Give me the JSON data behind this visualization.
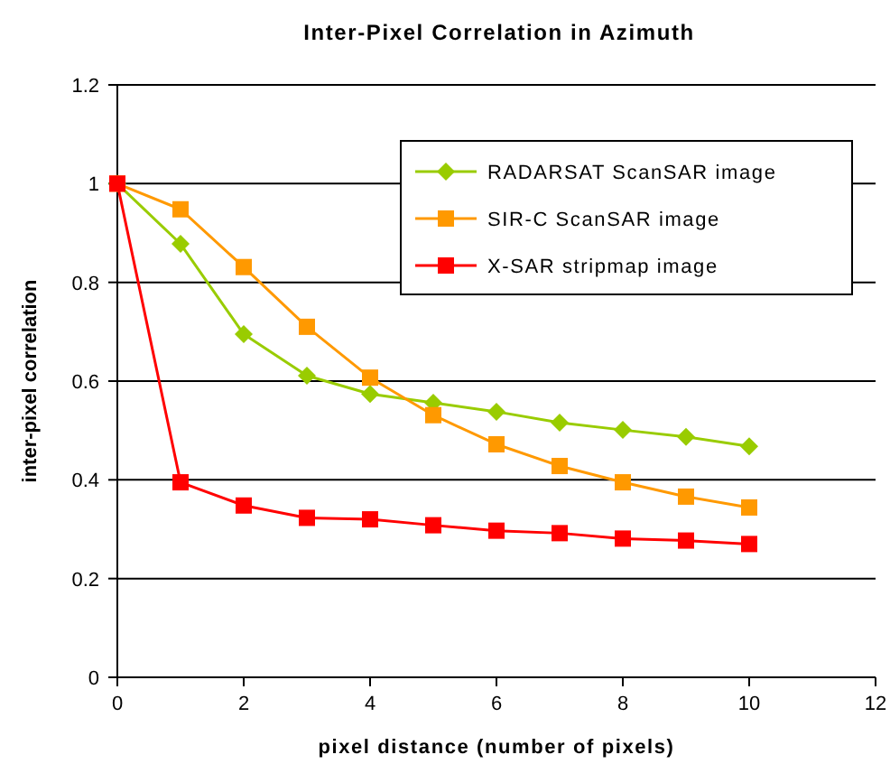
{
  "chart_data": {
    "type": "line",
    "title": "Inter-Pixel Correlation in Azimuth",
    "xlabel": "pixel distance (number of pixels)",
    "ylabel": "inter-pixel correlation",
    "x": [
      0,
      1,
      2,
      3,
      4,
      5,
      6,
      7,
      8,
      9,
      10
    ],
    "series": [
      {
        "name": "RADARSAT ScanSAR image",
        "color": "#99cc00",
        "marker": "diamond",
        "values": [
          1,
          0.878,
          0.695,
          0.611,
          0.574,
          0.556,
          0.538,
          0.516,
          0.501,
          0.487,
          0.468
        ]
      },
      {
        "name": "SIR-C ScanSAR image",
        "color": "#ff9900",
        "marker": "square",
        "values": [
          1,
          0.948,
          0.831,
          0.71,
          0.607,
          0.531,
          0.472,
          0.428,
          0.395,
          0.366,
          0.344
        ]
      },
      {
        "name": "X-SAR stripmap image",
        "color": "#ff0000",
        "marker": "square",
        "values": [
          1,
          0.395,
          0.348,
          0.323,
          0.32,
          0.308,
          0.297,
          0.292,
          0.281,
          0.277,
          0.27
        ]
      }
    ],
    "xlim": [
      0,
      12
    ],
    "xticks": [
      0,
      2,
      4,
      6,
      8,
      10,
      12
    ],
    "ylim": [
      0,
      1.2
    ],
    "yticks": [
      0,
      {
        "value": 0.2,
        "label": "0.2"
      },
      {
        "value": 0.4,
        "label": "0.4"
      },
      {
        "value": 0.6,
        "label": "0.6"
      },
      {
        "value": 0.8,
        "label": "0.8"
      },
      1,
      {
        "value": 1.2,
        "label": "1.2"
      }
    ],
    "grid": "y",
    "legend": "top right"
  }
}
